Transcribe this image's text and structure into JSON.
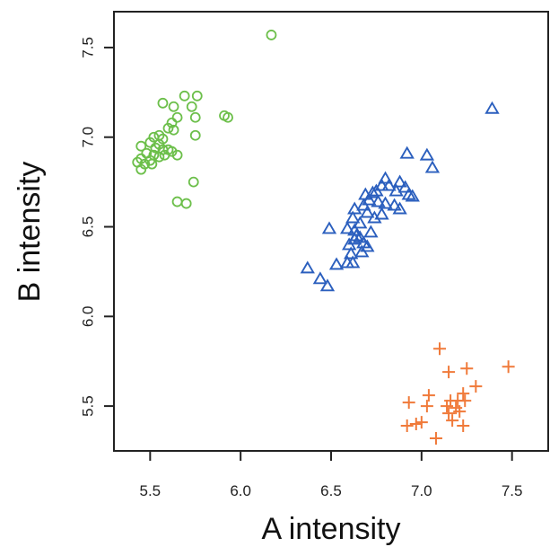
{
  "chart_data": {
    "type": "scatter",
    "xlabel": "A intensity",
    "ylabel": "B intensity",
    "xlim": [
      5.3,
      7.7
    ],
    "ylim": [
      5.25,
      7.7
    ],
    "xticks": [
      "5.5",
      "6.0",
      "6.5",
      "7.0",
      "7.5"
    ],
    "yticks": [
      "5.5",
      "6.0",
      "6.5",
      "7.0",
      "7.5"
    ],
    "grid": false,
    "legend": "none",
    "series": [
      {
        "marker": "circle",
        "color": "#6cbf4a",
        "points": [
          [
            6.17,
            7.57
          ],
          [
            5.57,
            7.19
          ],
          [
            5.63,
            7.17
          ],
          [
            5.69,
            7.23
          ],
          [
            5.76,
            7.23
          ],
          [
            5.73,
            7.17
          ],
          [
            5.75,
            7.11
          ],
          [
            5.91,
            7.12
          ],
          [
            5.93,
            7.11
          ],
          [
            5.65,
            7.11
          ],
          [
            5.62,
            7.08
          ],
          [
            5.6,
            7.05
          ],
          [
            5.63,
            7.04
          ],
          [
            5.55,
            7.01
          ],
          [
            5.52,
            7.0
          ],
          [
            5.57,
            6.99
          ],
          [
            5.75,
            7.01
          ],
          [
            5.5,
            6.97
          ],
          [
            5.55,
            6.96
          ],
          [
            5.45,
            6.95
          ],
          [
            5.53,
            6.94
          ],
          [
            5.57,
            6.93
          ],
          [
            5.6,
            6.93
          ],
          [
            5.62,
            6.92
          ],
          [
            5.48,
            6.91
          ],
          [
            5.52,
            6.9
          ],
          [
            5.58,
            6.9
          ],
          [
            5.55,
            6.89
          ],
          [
            5.65,
            6.9
          ],
          [
            5.45,
            6.88
          ],
          [
            5.5,
            6.87
          ],
          [
            5.43,
            6.86
          ],
          [
            5.47,
            6.85
          ],
          [
            5.51,
            6.85
          ],
          [
            5.45,
            6.82
          ],
          [
            5.74,
            6.75
          ],
          [
            5.65,
            6.64
          ],
          [
            5.7,
            6.63
          ]
        ]
      },
      {
        "marker": "triangle",
        "color": "#2b5fbe",
        "points": [
          [
            7.39,
            7.16
          ],
          [
            6.92,
            6.91
          ],
          [
            7.03,
            6.9
          ],
          [
            7.06,
            6.83
          ],
          [
            6.8,
            6.77
          ],
          [
            6.82,
            6.73
          ],
          [
            6.78,
            6.73
          ],
          [
            6.88,
            6.75
          ],
          [
            6.91,
            6.72
          ],
          [
            6.86,
            6.7
          ],
          [
            6.75,
            6.7
          ],
          [
            6.73,
            6.69
          ],
          [
            6.69,
            6.68
          ],
          [
            6.93,
            6.68
          ],
          [
            6.95,
            6.67
          ],
          [
            6.71,
            6.65
          ],
          [
            6.76,
            6.64
          ],
          [
            6.8,
            6.63
          ],
          [
            6.85,
            6.62
          ],
          [
            6.88,
            6.6
          ],
          [
            6.68,
            6.62
          ],
          [
            6.63,
            6.6
          ],
          [
            6.7,
            6.58
          ],
          [
            6.78,
            6.57
          ],
          [
            6.74,
            6.55
          ],
          [
            6.62,
            6.55
          ],
          [
            6.66,
            6.52
          ],
          [
            6.49,
            6.49
          ],
          [
            6.59,
            6.49
          ],
          [
            6.63,
            6.48
          ],
          [
            6.72,
            6.47
          ],
          [
            6.64,
            6.45
          ],
          [
            6.66,
            6.44
          ],
          [
            6.63,
            6.43
          ],
          [
            6.68,
            6.41
          ],
          [
            6.6,
            6.4
          ],
          [
            6.7,
            6.39
          ],
          [
            6.67,
            6.36
          ],
          [
            6.61,
            6.35
          ],
          [
            6.62,
            6.3
          ],
          [
            6.53,
            6.29
          ],
          [
            6.59,
            6.3
          ],
          [
            6.37,
            6.27
          ],
          [
            6.44,
            6.21
          ],
          [
            6.48,
            6.17
          ]
        ]
      },
      {
        "marker": "plus",
        "color": "#f07a3a",
        "points": [
          [
            7.1,
            5.82
          ],
          [
            7.48,
            5.72
          ],
          [
            7.25,
            5.71
          ],
          [
            7.15,
            5.69
          ],
          [
            7.3,
            5.61
          ],
          [
            7.23,
            5.57
          ],
          [
            7.04,
            5.56
          ],
          [
            7.16,
            5.53
          ],
          [
            7.2,
            5.53
          ],
          [
            7.24,
            5.53
          ],
          [
            6.93,
            5.52
          ],
          [
            7.14,
            5.5
          ],
          [
            7.03,
            5.5
          ],
          [
            7.19,
            5.49
          ],
          [
            7.21,
            5.47
          ],
          [
            7.15,
            5.46
          ],
          [
            7.17,
            5.42
          ],
          [
            7.0,
            5.41
          ],
          [
            6.97,
            5.4
          ],
          [
            6.92,
            5.39
          ],
          [
            7.23,
            5.39
          ],
          [
            7.08,
            5.32
          ]
        ]
      }
    ]
  }
}
